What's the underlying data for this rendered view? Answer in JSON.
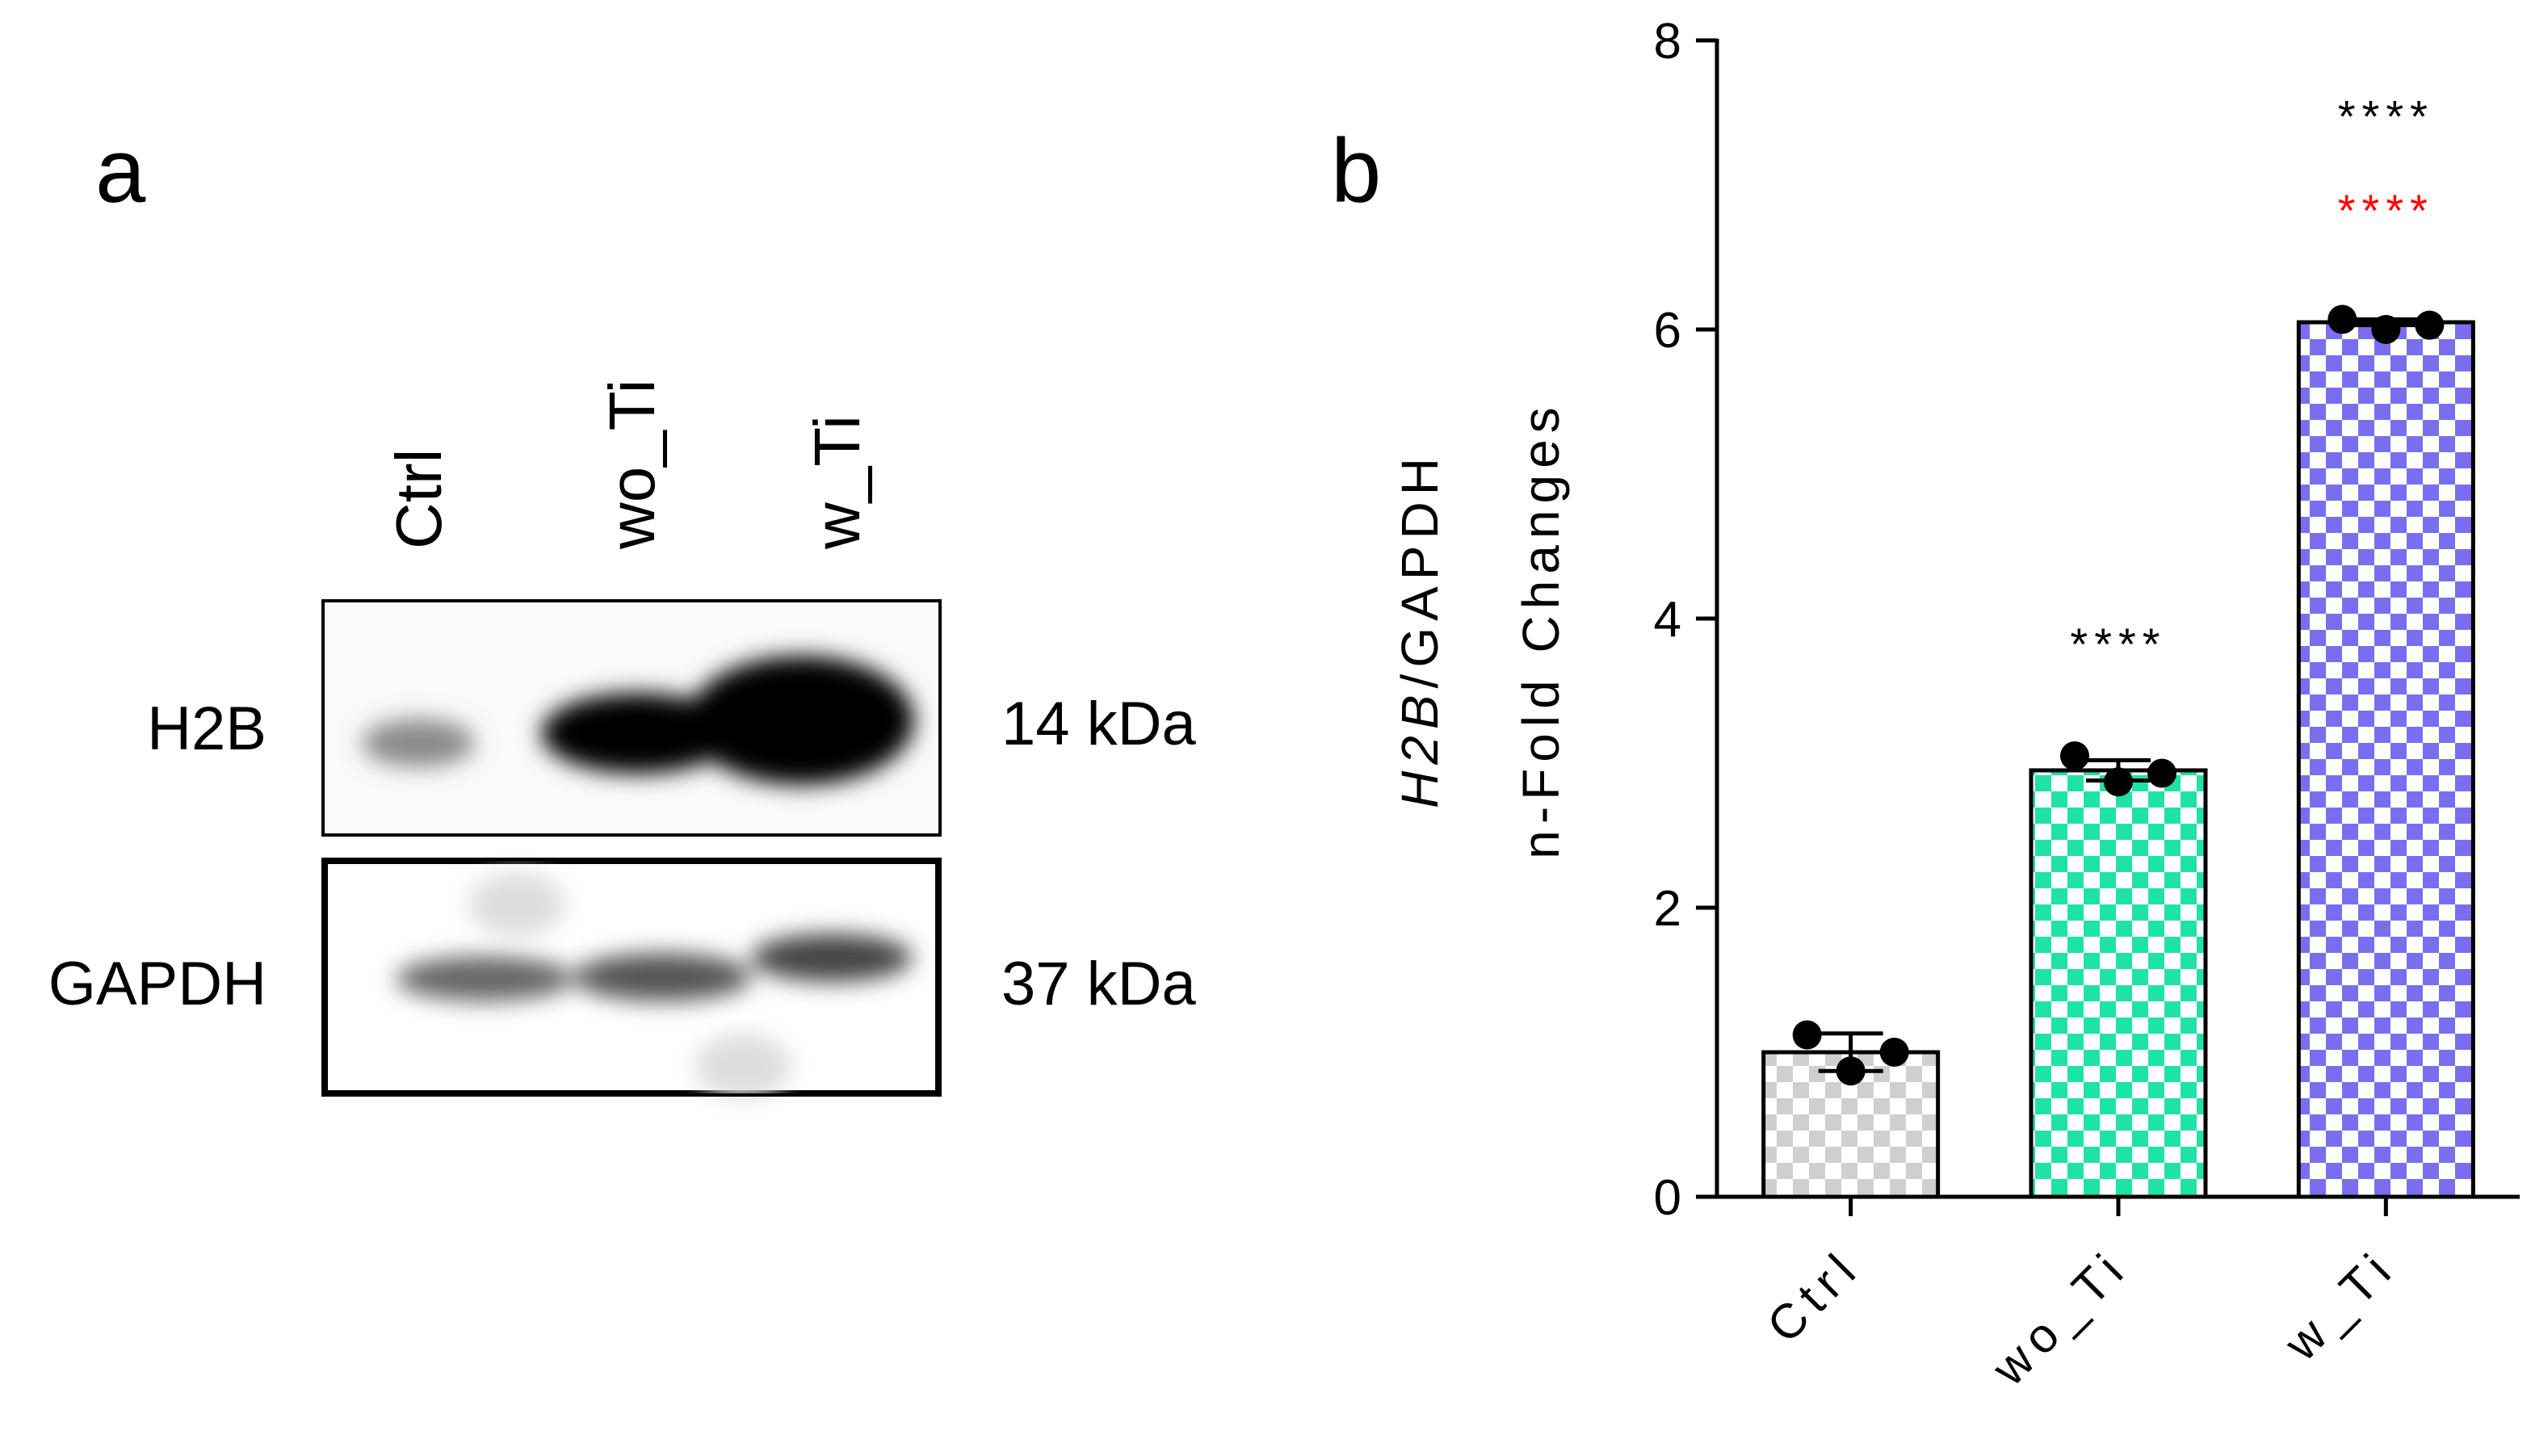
{
  "panel_a": {
    "label": "a",
    "lanes": [
      "Ctrl",
      "wo_Ti",
      "w_Ti"
    ],
    "rows": [
      {
        "protein": "H2B",
        "size": "14 kDa"
      },
      {
        "protein": "GAPDH",
        "size": "37 kDa"
      }
    ]
  },
  "chart_data": {
    "type": "bar",
    "panel_label": "b",
    "ylabel_gene": "H2B",
    "ylabel_ratio": "/GAPDH",
    "ylabel_unit": "n-Fold Changes",
    "categories": [
      "Ctrl",
      "wo_Ti",
      "w_Ti"
    ],
    "values": [
      1.0,
      2.95,
      6.05
    ],
    "errors": [
      0.13,
      0.07,
      0.02
    ],
    "points": [
      [
        1.12,
        0.87,
        1.0
      ],
      [
        3.05,
        2.87,
        2.93
      ],
      [
        6.07,
        6.0,
        6.03
      ]
    ],
    "colors": [
      "#cfcfcf",
      "#1fe3a6",
      "#7a6ef0"
    ],
    "ylim": [
      0,
      8
    ],
    "yticks": [
      0,
      2,
      4,
      6,
      8
    ],
    "annotations": [
      {
        "text": "****",
        "x": "wo_Ti",
        "y": 3.85,
        "color": "#000000"
      },
      {
        "text": "****",
        "x": "w_Ti",
        "y": 7.5,
        "color": "#000000"
      },
      {
        "text": "****",
        "x": "w_Ti",
        "y": 6.85,
        "color": "#ff0000"
      }
    ]
  }
}
